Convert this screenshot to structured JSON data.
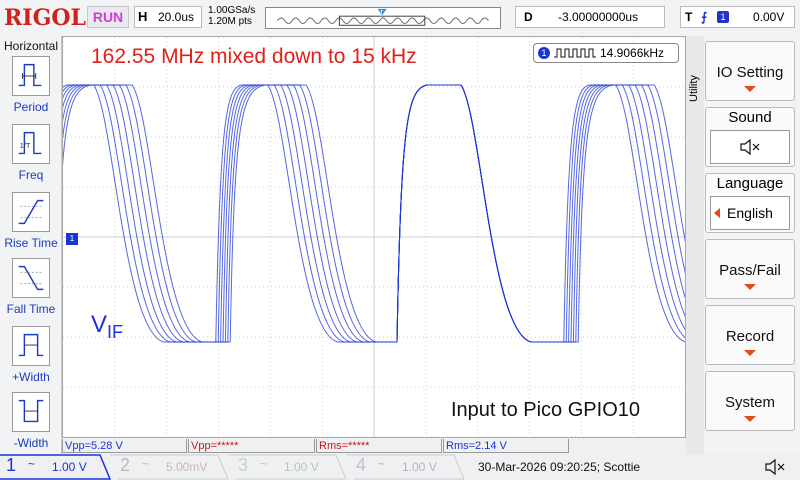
{
  "topbar": {
    "logo": "RIGOL",
    "run_state": "RUN",
    "horizontal": {
      "label": "H",
      "value": "20.0us"
    },
    "sample_rate": "1.00GSa/s",
    "memory_depth": "1.20M pts",
    "delay": {
      "label": "D",
      "value": "-3.00000000us"
    },
    "trigger": {
      "label": "T",
      "channel": "1",
      "level": "0.00V"
    }
  },
  "left_panel": {
    "title": "Horizontal",
    "buttons": [
      {
        "label": "Period",
        "icon": "period-icon"
      },
      {
        "label": "Freq",
        "icon": "frequency-icon"
      },
      {
        "label": "Rise Time",
        "icon": "rise-time-icon"
      },
      {
        "label": "Fall Time",
        "icon": "fall-time-icon"
      },
      {
        "label": "+Width",
        "icon": "positive-width-icon"
      },
      {
        "label": "-Width",
        "icon": "negative-width-icon"
      }
    ]
  },
  "waveform": {
    "title": "162.55 MHz mixed down to 15 kHz",
    "frequency_counter": {
      "channel": "1",
      "value": "14.9066kHz"
    },
    "signal_label_main": "V",
    "signal_label_sub": "IF",
    "caption": "Input to Pico GPIO10",
    "channel_marker": "1",
    "trace_color": "#1b34d6"
  },
  "measurements": {
    "vpp_ch1": "Vpp=5.28 V",
    "vpp_ch2": "Vpp=*****",
    "rms_ch2": "Rms=*****",
    "rms_ch1": "Rms=2.14 V"
  },
  "right_panel": {
    "utility_label": "Utility",
    "buttons": [
      {
        "label": "IO Setting"
      },
      {
        "label": "Sound",
        "value_icon": "speaker-muted-icon"
      },
      {
        "label": "Language",
        "value": "English"
      },
      {
        "label": "Pass/Fail"
      },
      {
        "label": "Record"
      },
      {
        "label": "System"
      }
    ]
  },
  "bottombar": {
    "channels": [
      {
        "num": "1",
        "coupling": "~",
        "scale": "1.00 V",
        "color": "#1b34d6",
        "active": true
      },
      {
        "num": "2",
        "coupling": "~",
        "scale": "5.00mV",
        "color": "#c9b4b4",
        "active": false
      },
      {
        "num": "3",
        "coupling": "~",
        "scale": "1.00 V",
        "color": "#c0d8c0",
        "active": false
      },
      {
        "num": "4",
        "coupling": "~",
        "scale": "1.00 V",
        "color": "#c0c0d8",
        "active": false
      }
    ],
    "datetime": "30-Mar-2026 09:20:25; Scottie"
  },
  "colors": {
    "title_red": "#e0201a",
    "accent_orange": "#e04b1a",
    "trace_blue": "#1b34d6",
    "run_magenta": "#d63adf"
  }
}
